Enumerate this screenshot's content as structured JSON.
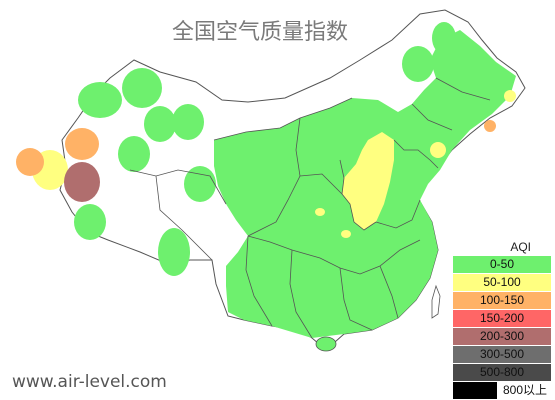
{
  "title": "全国空气质量指数",
  "watermark": "www.air-level.com",
  "legend": {
    "title": "AQI",
    "items": [
      {
        "label": "0-50",
        "color": "#6ef06e"
      },
      {
        "label": "50-100",
        "color": "#ffff80"
      },
      {
        "label": "100-150",
        "color": "#ffb266"
      },
      {
        "label": "150-200",
        "color": "#ff6666"
      },
      {
        "label": "200-300",
        "color": "#b06e6e"
      },
      {
        "label": "300-500",
        "color": "#6e6e6e"
      },
      {
        "label": "500-800",
        "color": "#4a4a4a"
      },
      {
        "label": "800以上",
        "color": "#000000"
      }
    ]
  },
  "colors": {
    "good": "#6ef06e",
    "moderate": "#ffff80",
    "sensitive": "#ffb266",
    "heavy": "#b06e6e",
    "border": "#555555"
  }
}
